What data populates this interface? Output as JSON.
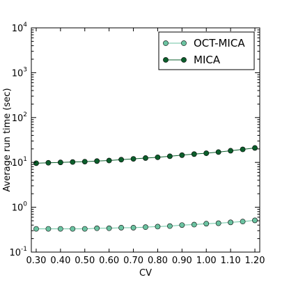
{
  "chart_data": {
    "type": "line",
    "xlabel": "CV",
    "ylabel": "Average run time (sec)",
    "yscale": "log",
    "xlim": [
      0.28,
      1.22
    ],
    "ylim": [
      0.1,
      10000
    ],
    "x_ticks": [
      0.3,
      0.4,
      0.5,
      0.6,
      0.7,
      0.8,
      0.9,
      1.0,
      1.1,
      1.2
    ],
    "x_tick_labels": [
      "0.30",
      "0.40",
      "0.50",
      "0.60",
      "0.70",
      "0.80",
      "0.90",
      "1.00",
      "1.10",
      "1.20"
    ],
    "y_ticks": [
      0.1,
      1,
      10,
      100,
      1000,
      10000
    ],
    "y_tick_labels": [
      {
        "base": "10",
        "exp": "-1"
      },
      {
        "base": "10",
        "exp": "0"
      },
      {
        "base": "10",
        "exp": "1"
      },
      {
        "base": "10",
        "exp": "2"
      },
      {
        "base": "10",
        "exp": "3"
      },
      {
        "base": "10",
        "exp": "4"
      }
    ],
    "legend_position": "top-right",
    "grid": false,
    "x": [
      0.3,
      0.35,
      0.4,
      0.45,
      0.5,
      0.55,
      0.6,
      0.65,
      0.7,
      0.75,
      0.8,
      0.85,
      0.9,
      0.95,
      1.0,
      1.05,
      1.1,
      1.15,
      1.2
    ],
    "series": [
      {
        "name": "OCT-MICA",
        "color": "#6bc3a1",
        "values": [
          0.33,
          0.33,
          0.33,
          0.33,
          0.33,
          0.34,
          0.34,
          0.35,
          0.35,
          0.36,
          0.37,
          0.38,
          0.4,
          0.41,
          0.43,
          0.44,
          0.46,
          0.48,
          0.51
        ]
      },
      {
        "name": "MICA",
        "color": "#0b5e2b",
        "values": [
          9.6,
          9.8,
          10.0,
          10.2,
          10.4,
          10.7,
          11.0,
          11.5,
          12.0,
          12.5,
          13.0,
          13.7,
          14.5,
          15.3,
          16.0,
          17.0,
          18.2,
          19.5,
          21.0
        ]
      }
    ]
  }
}
